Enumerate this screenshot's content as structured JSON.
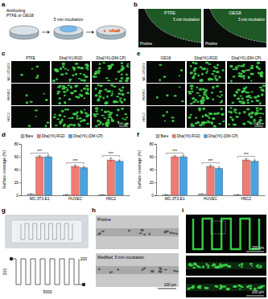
{
  "panel_labels": [
    "a",
    "b",
    "c",
    "d",
    "e",
    "f",
    "g",
    "h",
    "i"
  ],
  "a": {
    "lines": [
      "Antifouling",
      "PTFE or OEG8"
    ],
    "step": "5 min incubation"
  },
  "b": {
    "titles": [
      "PTFE",
      "OEG8"
    ],
    "condition": "5 min incubation",
    "region": "Pristine"
  },
  "c": {
    "columns": [
      "PTFE",
      "Dba[YK]-RGD",
      "Dba[YK]-(DM-CP)"
    ],
    "rows": [
      "MC-3T3-E1",
      "HUVEC",
      "H9C2"
    ],
    "scale_bar": "100 µm"
  },
  "e": {
    "columns": [
      "OEG8",
      "Dba[YK]-RGD",
      "Dba[YK]-(DM-CP)"
    ],
    "rows": [
      "MC-3T3-E1",
      "HUVEC",
      "H9C2"
    ],
    "scale_bar": "100 µm"
  },
  "g": {
    "length": "5000",
    "width": "200"
  },
  "h": {
    "top": "Pristine",
    "bottom": "Modified, 5 min incubation",
    "scale_bar": "200 µm"
  },
  "i": {
    "scale_bar": "200 µm"
  },
  "chart_data": [
    {
      "type": "bar",
      "categories": [
        "MC-3T3-E1",
        "HUVEC",
        "H9C2"
      ],
      "ylabel": "Surface coverage (%)",
      "ylim": [
        0,
        80
      ],
      "yticks": [
        0,
        20,
        40,
        60,
        80
      ],
      "legend": "top",
      "series": [
        {
          "name": "Bare",
          "color": "#b5b5b5",
          "values": [
            2,
            1,
            1
          ],
          "errors": [
            0.5,
            0.3,
            0.3
          ]
        },
        {
          "name": "Dba[YK]-RGD",
          "color": "#f07b72",
          "values": [
            60,
            45,
            55
          ],
          "errors": [
            2,
            2,
            3
          ]
        },
        {
          "name": "Dba[YK]-(DM-CP)",
          "color": "#4aa3df",
          "values": [
            60,
            43,
            53
          ],
          "errors": [
            2,
            2,
            2
          ]
        }
      ],
      "significance": [
        "***",
        "***",
        "***"
      ]
    },
    {
      "type": "bar",
      "categories": [
        "MC-3T3-E1",
        "HUVEC",
        "H9C2"
      ],
      "ylabel": "Surface coverage (%)",
      "ylim": [
        0,
        80
      ],
      "yticks": [
        0,
        20,
        40,
        60,
        80
      ],
      "legend": "top",
      "series": [
        {
          "name": "Bare",
          "color": "#b5b5b5",
          "values": [
            1,
            2,
            1
          ],
          "errors": [
            0.3,
            0.5,
            0.3
          ]
        },
        {
          "name": "Dba[YK]-RGD",
          "color": "#f07b72",
          "values": [
            60,
            45,
            55
          ],
          "errors": [
            2,
            2,
            2
          ]
        },
        {
          "name": "Dba[YK]-(DM-CP)",
          "color": "#4aa3df",
          "values": [
            60,
            42,
            53
          ],
          "errors": [
            2,
            2,
            2
          ]
        }
      ],
      "significance": [
        "***",
        "***",
        "***"
      ]
    }
  ]
}
